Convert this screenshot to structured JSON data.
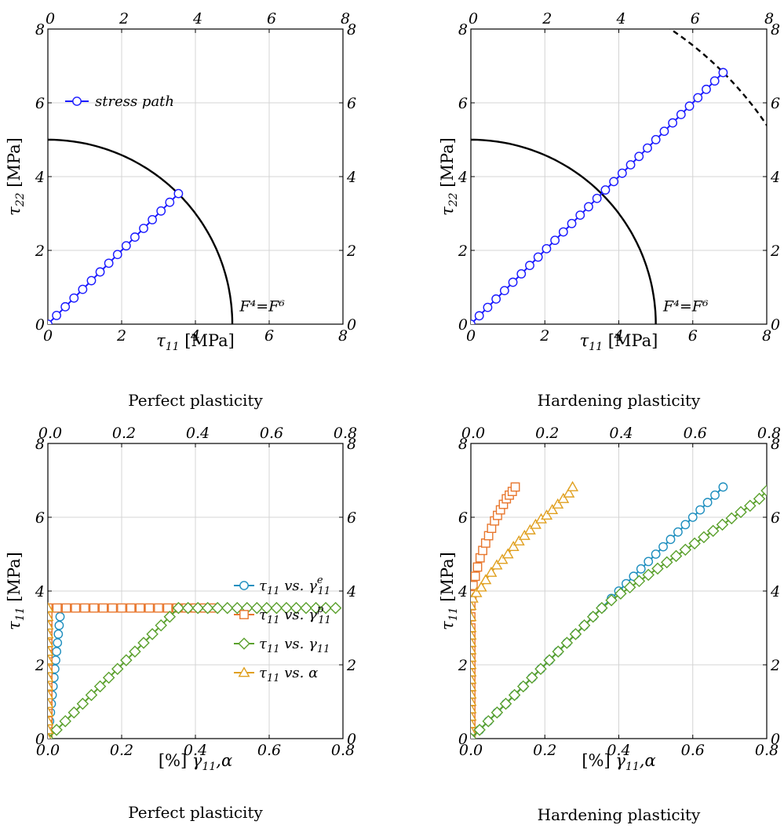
{
  "chart_data": [
    {
      "type": "line",
      "xlabel_var": "τ",
      "xlabel_sub": "11",
      "xlabel_unit": "[MPa]",
      "ylabel_var": "τ",
      "ylabel_sub": "22",
      "ylabel_unit": "[MPa]",
      "caption": "Perfect plasticity",
      "xlim": [
        0,
        8
      ],
      "ylim": [
        0,
        8
      ],
      "xticks": [
        "0",
        "2",
        "4",
        "6",
        "8"
      ],
      "yticks": [
        "0",
        "2",
        "4",
        "6",
        "8"
      ],
      "grid": true,
      "legend": {
        "label": "stress path",
        "placement": "upper-left"
      },
      "annotation": {
        "text": "F⁴=F⁶",
        "x": 5.2,
        "y": 0.35
      },
      "yield_surface": {
        "radius": 5.0,
        "color": "#000000",
        "style": "solid"
      },
      "series": [
        {
          "name": "stress path",
          "color": "#1a1aff",
          "marker": "circle",
          "from": [
            0,
            0
          ],
          "to": [
            3.54,
            3.54
          ],
          "n_points": 16
        }
      ]
    },
    {
      "type": "line",
      "xlabel_var": "τ",
      "xlabel_sub": "11",
      "xlabel_unit": "[MPa]",
      "ylabel_var": "τ",
      "ylabel_sub": "22",
      "ylabel_unit": "[MPa]",
      "caption": "Hardening plasticity",
      "xlim": [
        0,
        8
      ],
      "ylim": [
        0,
        8
      ],
      "xticks": [
        "0",
        "2",
        "4",
        "6",
        "8"
      ],
      "yticks": [
        "0",
        "2",
        "4",
        "6",
        "8"
      ],
      "grid": true,
      "annotation": {
        "text": "F⁴=F⁶",
        "x": 5.2,
        "y": 0.35
      },
      "yield_surface": {
        "radius": 5.0,
        "color": "#000000",
        "style": "solid"
      },
      "hardened_surface": {
        "radius": 9.65,
        "color": "#000000",
        "style": "dashed"
      },
      "series": [
        {
          "name": "stress path",
          "color": "#1a1aff",
          "marker": "circle",
          "from": [
            0,
            0
          ],
          "to": [
            6.82,
            6.82
          ],
          "n_points": 31
        }
      ]
    },
    {
      "type": "line",
      "xlabel_pre": "[%]",
      "xlabel_var": "γ",
      "xlabel_sub": "11",
      "xlabel_post": ",α",
      "ylabel_var": "τ",
      "ylabel_sub": "11",
      "ylabel_unit": "[MPa]",
      "caption": "Perfect plasticity",
      "xlim": [
        0,
        0.8
      ],
      "ylim": [
        0,
        8
      ],
      "xticks": [
        "0.0",
        "0.2",
        "0.4",
        "0.6",
        "0.8"
      ],
      "yticks": [
        "0",
        "2",
        "4",
        "6",
        "8"
      ],
      "grid": true,
      "legend_placement": "center-right",
      "legend": [
        {
          "prefix": "τ",
          "sub": "11",
          "vs": " vs. ",
          "var": "γ",
          "sup": "e",
          "vsub": "11",
          "color": "#1f8fbf",
          "marker": "circle"
        },
        {
          "prefix": "τ",
          "sub": "11",
          "vs": " vs. ",
          "var": "γ",
          "sup": "p",
          "vsub": "11",
          "color": "#e8772e",
          "marker": "square"
        },
        {
          "prefix": "τ",
          "sub": "11",
          "vs": " vs. ",
          "var": "γ",
          "sup": "",
          "vsub": "11",
          "color": "#5aa02c",
          "marker": "diamond"
        },
        {
          "prefix": "τ",
          "sub": "11",
          "vs": " vs. ",
          "var": "α",
          "sup": "",
          "vsub": "",
          "color": "#e0a020",
          "marker": "triangle"
        }
      ],
      "series": [
        {
          "name": "τ11 vs. γe11",
          "color": "#1f8fbf",
          "marker": "circle",
          "x": [
            0.0,
            0.0354
          ],
          "y": [
            0.0,
            3.54
          ],
          "n_points": 16
        },
        {
          "name": "τ11 vs. γp11",
          "color": "#e8772e",
          "marker": "square",
          "x": [
            0.0,
            0.0,
            0.0,
            0.0,
            0.0,
            0.0,
            0.0,
            0.0,
            0.0,
            0.0,
            0.0,
            0.0,
            0.0,
            0.0,
            0.0,
            0.0,
            0.0,
            0.0,
            0.0,
            0.0,
            0.0,
            0.0,
            0.0,
            0.0,
            0.0,
            0.0,
            0.0,
            0.0,
            0.0,
            0.0,
            0.0,
            0.0,
            0.0,
            0.0,
            0.0,
            0.0,
            0.025,
            0.05,
            0.075,
            0.1,
            0.125,
            0.15,
            0.175,
            0.2,
            0.225,
            0.25,
            0.275,
            0.3,
            0.325,
            0.35,
            0.375,
            0.4,
            0.425,
            0.45
          ],
          "y": [
            0.0,
            0.1,
            0.2,
            0.3,
            0.4,
            0.5,
            0.6,
            0.7,
            0.8,
            0.9,
            1.0,
            1.1,
            1.2,
            1.3,
            1.4,
            1.5,
            1.6,
            1.7,
            1.8,
            1.9,
            2.0,
            2.1,
            2.2,
            2.3,
            2.4,
            2.5,
            2.6,
            2.7,
            2.8,
            2.9,
            3.0,
            3.1,
            3.2,
            3.3,
            3.4,
            3.54,
            3.54,
            3.54,
            3.54,
            3.54,
            3.54,
            3.54,
            3.54,
            3.54,
            3.54,
            3.54,
            3.54,
            3.54,
            3.54,
            3.54,
            3.54,
            3.54,
            3.54,
            3.54
          ]
        },
        {
          "name": "τ11 vs. γ11",
          "color": "#5aa02c",
          "marker": "diamond",
          "x": [
            0.0,
            0.0236,
            0.0472,
            0.0708,
            0.0944,
            0.118,
            0.1416,
            0.1652,
            0.1888,
            0.2124,
            0.236,
            0.2596,
            0.2832,
            0.3068,
            0.3304,
            0.354,
            0.38,
            0.4067,
            0.4333,
            0.46,
            0.4867,
            0.5133,
            0.54,
            0.5667,
            0.5933,
            0.62,
            0.6467,
            0.6733,
            0.7,
            0.7267,
            0.7533,
            0.78
          ],
          "y": [
            0.0,
            0.236,
            0.472,
            0.708,
            0.944,
            1.18,
            1.416,
            1.652,
            1.888,
            2.124,
            2.36,
            2.596,
            2.832,
            3.068,
            3.304,
            3.54,
            3.54,
            3.54,
            3.54,
            3.54,
            3.54,
            3.54,
            3.54,
            3.54,
            3.54,
            3.54,
            3.54,
            3.54,
            3.54,
            3.54,
            3.54,
            3.54
          ]
        },
        {
          "name": "τ11 vs. α",
          "color": "#e0a020",
          "marker": "triangle",
          "x": [
            0.0,
            0.0,
            0.0,
            0.0,
            0.0,
            0.0,
            0.0,
            0.0,
            0.0,
            0.0,
            0.0,
            0.0,
            0.0,
            0.0,
            0.0,
            0.0
          ],
          "y": [
            0.0,
            0.236,
            0.472,
            0.708,
            0.944,
            1.18,
            1.416,
            1.652,
            1.888,
            2.124,
            2.36,
            2.596,
            2.832,
            3.068,
            3.304,
            3.54
          ]
        }
      ]
    },
    {
      "type": "line",
      "xlabel_pre": "[%]",
      "xlabel_var": "γ",
      "xlabel_sub": "11",
      "xlabel_post": ",α",
      "ylabel_var": "τ",
      "ylabel_sub": "11",
      "ylabel_unit": "[MPa]",
      "caption": "Hardening plasticity",
      "xlim": [
        0,
        0.8
      ],
      "ylim": [
        0,
        8
      ],
      "xticks": [
        "0.0",
        "0.2",
        "0.4",
        "0.6",
        "0.8"
      ],
      "yticks": [
        "0",
        "2",
        "4",
        "6",
        "8"
      ],
      "grid": true,
      "series": [
        {
          "name": "τ11 vs. γp11",
          "color": "#e8772e",
          "marker": "square",
          "x": [
            0.0,
            0.0,
            0.0,
            0.0,
            0.0,
            0.0,
            0.0,
            0.0,
            0.0,
            0.0,
            0.0,
            0.0,
            0.0,
            0.0,
            0.0,
            0.0,
            0.0,
            0.0,
            0.003,
            0.006,
            0.012,
            0.018,
            0.025,
            0.032,
            0.04,
            0.048,
            0.056,
            0.064,
            0.072,
            0.08,
            0.088,
            0.096,
            0.104,
            0.112,
            0.12
          ],
          "y": [
            0.0,
            0.2,
            0.4,
            0.6,
            0.8,
            1.0,
            1.2,
            1.4,
            1.6,
            1.8,
            2.0,
            2.2,
            2.4,
            2.6,
            2.8,
            3.0,
            3.3,
            3.6,
            3.9,
            4.15,
            4.4,
            4.65,
            4.9,
            5.1,
            5.3,
            5.5,
            5.7,
            5.9,
            6.05,
            6.2,
            6.35,
            6.5,
            6.6,
            6.7,
            6.82
          ]
        },
        {
          "name": "τ11 vs. α",
          "color": "#e0a020",
          "marker": "triangle",
          "x": [
            0.0,
            0.0,
            0.0,
            0.0,
            0.0,
            0.0,
            0.0,
            0.0,
            0.0,
            0.0,
            0.0,
            0.0,
            0.0,
            0.0,
            0.0,
            0.0,
            0.0,
            0.0,
            0.005,
            0.015,
            0.028,
            0.04,
            0.055,
            0.07,
            0.085,
            0.1,
            0.115,
            0.13,
            0.145,
            0.16,
            0.175,
            0.19,
            0.205,
            0.22,
            0.235,
            0.25,
            0.265,
            0.275
          ],
          "y": [
            0.0,
            0.2,
            0.4,
            0.6,
            0.8,
            1.0,
            1.2,
            1.4,
            1.6,
            1.8,
            2.0,
            2.2,
            2.4,
            2.6,
            2.8,
            3.0,
            3.3,
            3.6,
            3.8,
            3.95,
            4.1,
            4.3,
            4.5,
            4.7,
            4.85,
            5.0,
            5.2,
            5.35,
            5.5,
            5.65,
            5.8,
            5.95,
            6.05,
            6.2,
            6.35,
            6.5,
            6.65,
            6.82
          ]
        },
        {
          "name": "τ11 vs. γe11",
          "color": "#1f8fbf",
          "marker": "circle",
          "x": [
            0.0,
            0.0236,
            0.0472,
            0.0708,
            0.0944,
            0.118,
            0.1416,
            0.1652,
            0.1888,
            0.2124,
            0.236,
            0.2596,
            0.2832,
            0.3068,
            0.3304,
            0.354,
            0.38,
            0.4,
            0.42,
            0.44,
            0.46,
            0.48,
            0.5,
            0.52,
            0.54,
            0.56,
            0.58,
            0.6,
            0.62,
            0.64,
            0.66,
            0.682
          ],
          "y": [
            0.0,
            0.236,
            0.472,
            0.708,
            0.944,
            1.18,
            1.416,
            1.652,
            1.888,
            2.124,
            2.36,
            2.596,
            2.832,
            3.068,
            3.304,
            3.54,
            3.8,
            4.0,
            4.2,
            4.4,
            4.6,
            4.8,
            5.0,
            5.2,
            5.4,
            5.6,
            5.8,
            6.0,
            6.2,
            6.4,
            6.6,
            6.82
          ]
        },
        {
          "name": "τ11 vs. γ11",
          "color": "#5aa02c",
          "marker": "diamond",
          "x": [
            0.0,
            0.0236,
            0.0472,
            0.0708,
            0.0944,
            0.118,
            0.1416,
            0.1652,
            0.1888,
            0.2124,
            0.236,
            0.2596,
            0.2832,
            0.3068,
            0.3304,
            0.354,
            0.38,
            0.405,
            0.43,
            0.455,
            0.48,
            0.505,
            0.53,
            0.555,
            0.58,
            0.605,
            0.63,
            0.655,
            0.68,
            0.705,
            0.73,
            0.755,
            0.78,
            0.8
          ],
          "y": [
            0.0,
            0.236,
            0.472,
            0.708,
            0.944,
            1.18,
            1.416,
            1.652,
            1.888,
            2.124,
            2.36,
            2.596,
            2.832,
            3.068,
            3.304,
            3.54,
            3.75,
            3.93,
            4.1,
            4.27,
            4.44,
            4.61,
            4.78,
            4.95,
            5.12,
            5.29,
            5.46,
            5.63,
            5.8,
            5.97,
            6.14,
            6.31,
            6.5,
            6.72
          ]
        }
      ]
    }
  ]
}
